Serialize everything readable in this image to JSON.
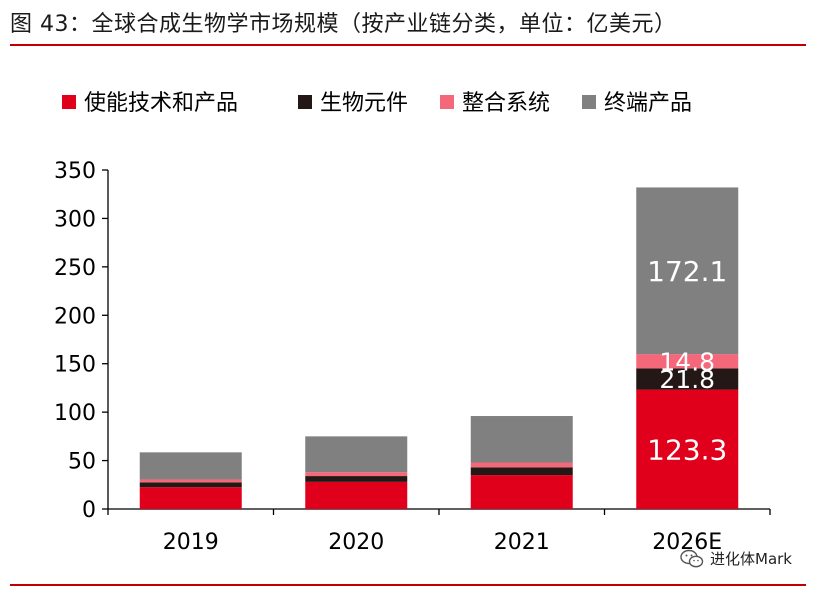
{
  "figure_title": "图 43：全球合成生物学市场规模（按产业链分类，单位：亿美元）",
  "watermark": "进化体Mark",
  "colors": {
    "使能技术和产品": "#e0001b",
    "生物元件": "#231815",
    "整合系统": "#f4687a",
    "终端产品": "#808080",
    "axis": "#000000",
    "rule": "#c00000",
    "label_light": "#ffffff"
  },
  "chart_data": {
    "type": "bar",
    "stacked": true,
    "categories": [
      "2019",
      "2020",
      "2021",
      "2026E"
    ],
    "series": [
      {
        "name": "使能技术和产品",
        "values": [
          22.5,
          28.0,
          35.0,
          123.3
        ]
      },
      {
        "name": "生物元件",
        "values": [
          5.0,
          6.0,
          8.0,
          21.8
        ]
      },
      {
        "name": "整合系统",
        "values": [
          3.0,
          4.0,
          5.0,
          14.8
        ]
      },
      {
        "name": "终端产品",
        "values": [
          28.0,
          37.0,
          48.0,
          172.1
        ]
      }
    ],
    "data_labels": [
      {
        "category": "2026E",
        "series": "使能技术和产品",
        "text": "123.3"
      },
      {
        "category": "2026E",
        "series": "生物元件",
        "text": "21.8"
      },
      {
        "category": "2026E",
        "series": "整合系统",
        "text": "14.8"
      },
      {
        "category": "2026E",
        "series": "终端产品",
        "text": "172.1"
      }
    ],
    "yticks": [
      0,
      50,
      100,
      150,
      200,
      250,
      300,
      350
    ],
    "ylim": [
      0,
      350
    ],
    "xlabel": "",
    "ylabel": "",
    "legend_position": "top",
    "grid": false
  }
}
